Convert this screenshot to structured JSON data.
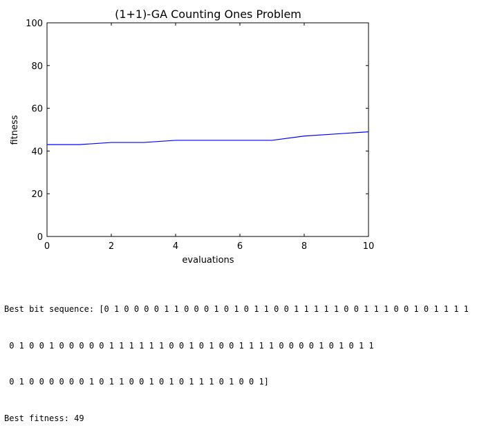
{
  "chart_data": {
    "type": "line",
    "title": "(1+1)-GA Counting Ones Problem",
    "xlabel": "evaluations",
    "ylabel": "fitness",
    "xlim": [
      0,
      10
    ],
    "ylim": [
      0,
      100
    ],
    "xticks": [
      0,
      2,
      4,
      6,
      8,
      10
    ],
    "yticks": [
      0,
      20,
      40,
      60,
      80,
      100
    ],
    "grid": false,
    "series": [
      {
        "color": "#0000ff",
        "x": [
          0,
          1,
          2,
          3,
          4,
          5,
          6,
          7,
          8,
          9,
          10
        ],
        "y": [
          43,
          43,
          44,
          44,
          45,
          45,
          45,
          45,
          47,
          48,
          49
        ]
      }
    ]
  },
  "console": {
    "lines": [
      "Best bit sequence: [0 1 0 0 0 0 1 1 0 0 0 1 0 1 0 1 1 0 0 1 1 1 1 1 0 0 1 1 1 0 0 1 0 1 1 1 1",
      " 0 1 0 0 1 0 0 0 0 0 1 1 1 1 1 1 0 0 1 0 1 0 0 1 1 1 1 0 0 0 0 1 0 1 0 1 1",
      " 0 1 0 0 0 0 0 0 1 0 1 1 0 0 1 0 1 0 1 1 1 0 1 0 0 1]",
      "Best fitness: 49"
    ]
  }
}
